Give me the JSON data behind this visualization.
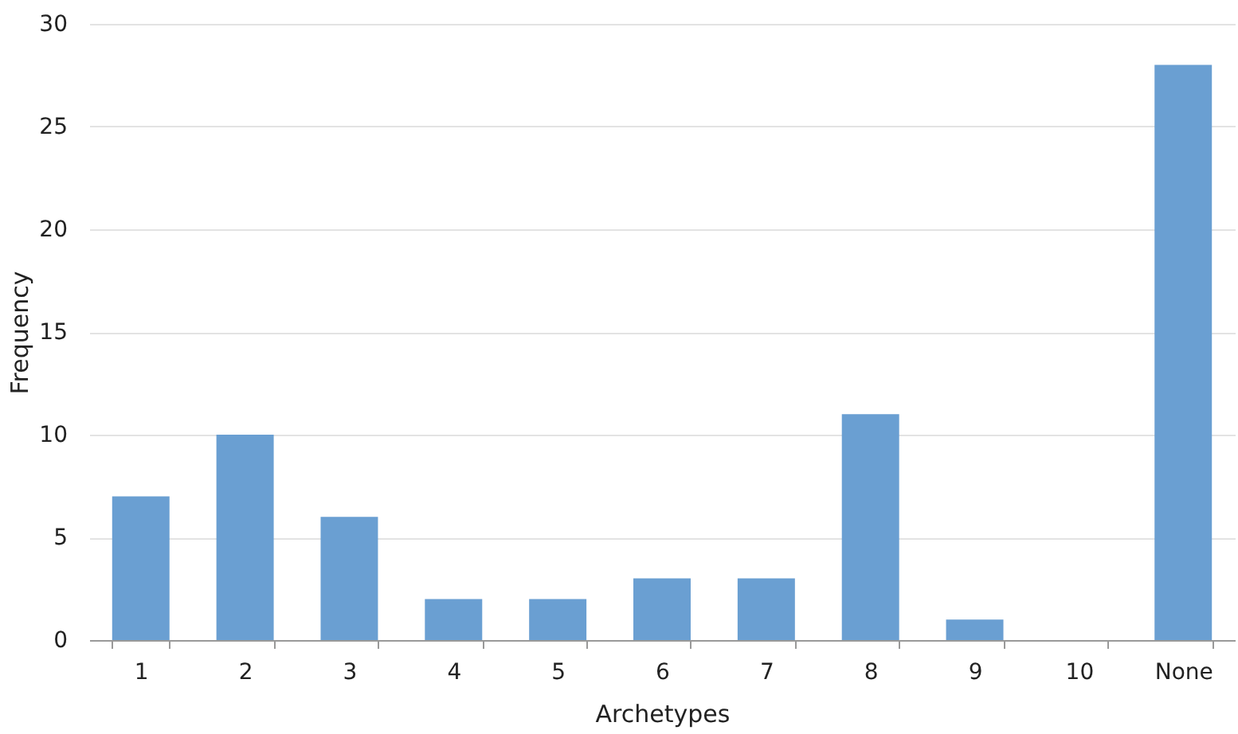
{
  "chart_data": {
    "type": "bar",
    "xlabel": "Archetypes",
    "ylabel": "Frequency",
    "categories": [
      "1",
      "2",
      "3",
      "4",
      "5",
      "6",
      "7",
      "8",
      "9",
      "10",
      "None"
    ],
    "values": [
      7,
      10,
      6,
      2,
      2,
      3,
      3,
      11,
      1,
      0,
      28
    ],
    "color": "#6a9fd2",
    "ylim": [
      0,
      30
    ],
    "yticks": [
      0,
      5,
      10,
      15,
      20,
      25,
      30
    ],
    "grid": "y"
  }
}
